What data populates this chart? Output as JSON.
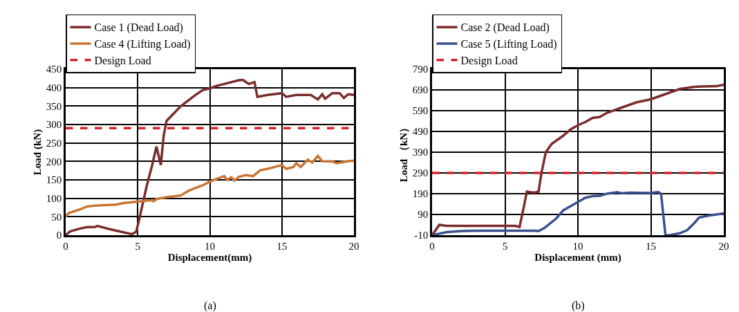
{
  "chart_data": [
    {
      "type": "line",
      "xlabel": "Displacement(mm)",
      "ylabel": "Load (kN)",
      "xlim": [
        0,
        20
      ],
      "xticks": [
        0,
        5,
        10,
        15,
        20
      ],
      "ylim": [
        0,
        450
      ],
      "yticks": [
        0,
        50,
        100,
        150,
        200,
        250,
        300,
        350,
        400,
        450
      ],
      "grid": true,
      "legend": "top left",
      "marker": "none",
      "annotations": [
        "(a)"
      ],
      "series": [
        {
          "name": "Case 1 (Dead Load)",
          "color": "#7b2c2c",
          "line_style": "solid",
          "x": [
            0,
            0.3,
            1,
            1.5,
            2,
            2.2,
            3,
            4,
            4.6,
            4.9,
            5.2,
            5.6,
            6,
            6.3,
            6.6,
            6.8,
            7,
            7.5,
            8,
            8.5,
            9,
            9.5,
            10,
            10.5,
            11,
            12,
            12.3,
            12.7,
            13.1,
            13.3,
            14,
            15,
            15.3,
            16,
            17,
            17.5,
            17.8,
            18,
            18.5,
            19,
            19.3,
            19.6,
            20
          ],
          "values": [
            0,
            10,
            18,
            22,
            22,
            25,
            17,
            8,
            3,
            10,
            60,
            130,
            190,
            240,
            190,
            270,
            310,
            330,
            350,
            365,
            380,
            393,
            398,
            405,
            410,
            420,
            421,
            410,
            415,
            375,
            380,
            385,
            375,
            380,
            380,
            368,
            382,
            370,
            385,
            385,
            372,
            382,
            380
          ]
        },
        {
          "name": "Case 4 (Lifting Load)",
          "color": "#c87533",
          "line_style": "solid",
          "x": [
            0,
            0.2,
            1,
            1.5,
            2,
            3,
            3.5,
            4,
            5,
            6,
            6.1,
            6.3,
            7,
            8,
            8.5,
            9,
            9.5,
            10,
            10.5,
            11,
            11.2,
            11.5,
            11.7,
            12,
            12.5,
            13,
            13.5,
            14,
            14.5,
            15,
            15.3,
            15.8,
            16,
            16.3,
            16.8,
            17.1,
            17.5,
            17.8,
            18.5,
            18.8,
            19.5,
            20
          ],
          "values": [
            50,
            60,
            70,
            78,
            80,
            82,
            83,
            87,
            91,
            95,
            92,
            98,
            103,
            108,
            120,
            128,
            135,
            145,
            153,
            160,
            150,
            157,
            148,
            158,
            163,
            160,
            176,
            180,
            185,
            190,
            180,
            185,
            195,
            185,
            205,
            197,
            215,
            200,
            200,
            195,
            200,
            202
          ]
        },
        {
          "name": "Design Load",
          "color": "#d9202a",
          "line_style": "dashed",
          "x": [
            0,
            20
          ],
          "values": [
            290,
            290
          ]
        }
      ]
    },
    {
      "type": "line",
      "xlabel": "Displacement (mm)",
      "ylabel": "Load （kN）",
      "xlim": [
        0,
        20
      ],
      "xticks": [
        0,
        5,
        10,
        15,
        20
      ],
      "ylim": [
        -10,
        790
      ],
      "yticks": [
        -10,
        90,
        190,
        290,
        390,
        490,
        590,
        690,
        790
      ],
      "grid": true,
      "legend": "top left",
      "marker": "none",
      "annotations": [
        "(b)"
      ],
      "series": [
        {
          "name": "Case 2 (Dead Load)",
          "color": "#7b2c2c",
          "line_style": "solid",
          "x": [
            0,
            0.5,
            1,
            3,
            5.7,
            6,
            6.3,
            6.5,
            7,
            7.3,
            7.5,
            7.8,
            8.2,
            9,
            9.5,
            10,
            10.5,
            11,
            11.5,
            12,
            13,
            14,
            15,
            16,
            17,
            18,
            18.5,
            19.5,
            20
          ],
          "values": [
            -10,
            40,
            35,
            35,
            35,
            30,
            130,
            200,
            195,
            200,
            290,
            390,
            430,
            470,
            500,
            520,
            535,
            555,
            560,
            580,
            605,
            630,
            645,
            670,
            695,
            705,
            707,
            708,
            715
          ]
        },
        {
          "name": "Case 5 (Lifting Load)",
          "color": "#3b4f8f",
          "line_style": "solid",
          "x": [
            0,
            1,
            2,
            3,
            5,
            7,
            7.3,
            7.7,
            8.5,
            9,
            9.5,
            10,
            10.5,
            11,
            11.5,
            12,
            12.7,
            13,
            13.5,
            15,
            15.5,
            15.7,
            16,
            16.3,
            17,
            17.5,
            18,
            18.3,
            19,
            20
          ],
          "values": [
            -10,
            5,
            10,
            12,
            12,
            12,
            10,
            25,
            70,
            110,
            130,
            150,
            170,
            178,
            180,
            190,
            197,
            192,
            195,
            193,
            198,
            190,
            -10,
            -10,
            0,
            15,
            50,
            75,
            85,
            95
          ]
        },
        {
          "name": "Design Load",
          "color": "#d9202a",
          "line_style": "dashed",
          "x": [
            0,
            20
          ],
          "values": [
            290,
            290
          ]
        }
      ]
    }
  ]
}
